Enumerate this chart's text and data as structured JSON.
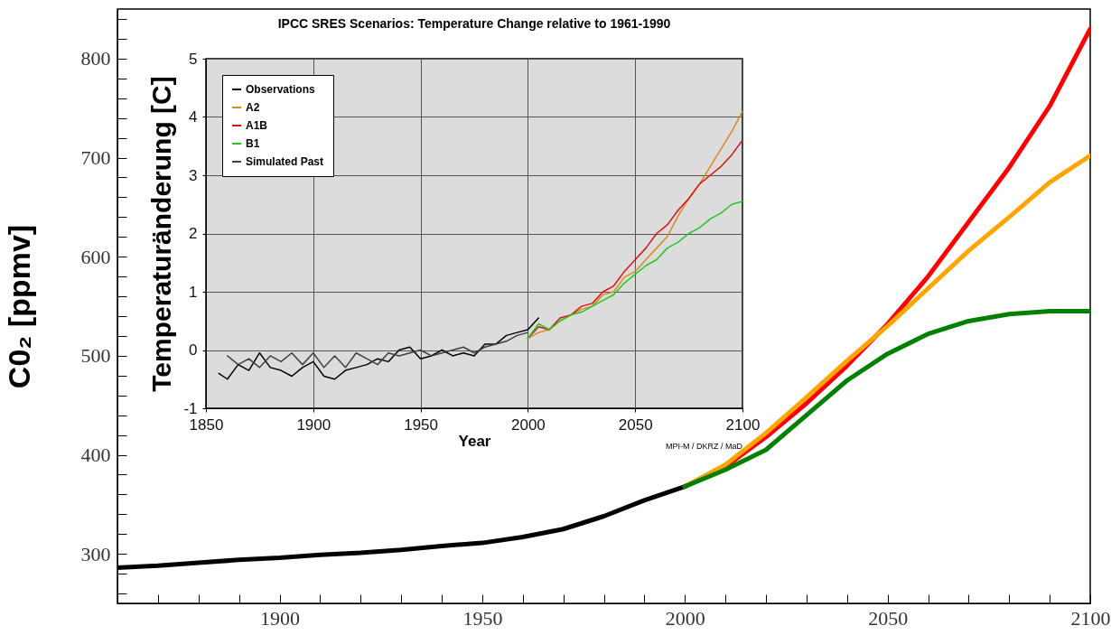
{
  "chart_data": [
    {
      "type": "line",
      "ylabel": "C0₂ [ppmv]",
      "xlim": [
        1860,
        2100
      ],
      "ylim": [
        250,
        850
      ],
      "xticks": [
        {
          "value": 1870,
          "label": null
        },
        {
          "value": 1880,
          "label": null
        },
        {
          "value": 1890,
          "label": null
        },
        1900,
        {
          "value": 1910,
          "label": null
        },
        {
          "value": 1920,
          "label": null
        },
        {
          "value": 1930,
          "label": null
        },
        {
          "value": 1940,
          "label": null
        },
        1950,
        {
          "value": 1960,
          "label": null
        },
        {
          "value": 1970,
          "label": null
        },
        {
          "value": 1980,
          "label": null
        },
        {
          "value": 1990,
          "label": null
        },
        2000,
        {
          "value": 2010,
          "label": null
        },
        {
          "value": 2020,
          "label": null
        },
        {
          "value": 2030,
          "label": null
        },
        {
          "value": 2040,
          "label": null
        },
        2050,
        {
          "value": 2060,
          "label": null
        },
        {
          "value": 2070,
          "label": null
        },
        {
          "value": 2080,
          "label": null
        },
        {
          "value": 2090,
          "label": null
        },
        2100
      ],
      "yticks": [
        {
          "value": 260,
          "label": null
        },
        {
          "value": 280,
          "label": null
        },
        300,
        {
          "value": 320,
          "label": null
        },
        {
          "value": 340,
          "label": null
        },
        {
          "value": 360,
          "label": null
        },
        {
          "value": 380,
          "label": null
        },
        400,
        {
          "value": 420,
          "label": null
        },
        {
          "value": 440,
          "label": null
        },
        {
          "value": 460,
          "label": null
        },
        {
          "value": 480,
          "label": null
        },
        500,
        {
          "value": 520,
          "label": null
        },
        {
          "value": 540,
          "label": null
        },
        {
          "value": 560,
          "label": null
        },
        {
          "value": 580,
          "label": null
        },
        600,
        {
          "value": 620,
          "label": null
        },
        {
          "value": 640,
          "label": null
        },
        {
          "value": 660,
          "label": null
        },
        {
          "value": 680,
          "label": null
        },
        700,
        {
          "value": 720,
          "label": null
        },
        {
          "value": 740,
          "label": null
        },
        {
          "value": 760,
          "label": null
        },
        {
          "value": 780,
          "label": null
        },
        800,
        {
          "value": 820,
          "label": null
        },
        {
          "value": 840,
          "label": null
        }
      ],
      "series": [
        {
          "color": "#000000",
          "x": [
            1860,
            1870,
            1880,
            1890,
            1900,
            1910,
            1920,
            1930,
            1940,
            1950,
            1960,
            1970,
            1980,
            1990,
            2000
          ],
          "values": [
            286,
            288,
            291,
            294,
            296,
            299,
            301,
            304,
            308,
            311,
            317,
            325,
            338,
            354,
            368
          ]
        },
        {
          "color": "#ff0000",
          "x": [
            2000,
            2010,
            2020,
            2030,
            2040,
            2050,
            2060,
            2070,
            2080,
            2090,
            2100
          ],
          "values": [
            368,
            388,
            418,
            452,
            490,
            532,
            580,
            635,
            690,
            752,
            830
          ]
        },
        {
          "color": "#ffa500",
          "x": [
            2000,
            2010,
            2020,
            2030,
            2040,
            2050,
            2060,
            2070,
            2080,
            2090,
            2100
          ],
          "values": [
            368,
            390,
            422,
            458,
            495,
            530,
            568,
            606,
            640,
            675,
            702
          ]
        },
        {
          "color": "#008000",
          "x": [
            2000,
            2010,
            2020,
            2030,
            2040,
            2050,
            2060,
            2070,
            2080,
            2090,
            2100
          ],
          "values": [
            368,
            385,
            405,
            440,
            475,
            502,
            522,
            535,
            542,
            545,
            545
          ]
        }
      ]
    },
    {
      "type": "line",
      "title": "IPCC SRES Scenarios: Temperature Change relative to 1961-1990",
      "xlabel": "Year",
      "ylabel": "Temperaturänderung [C]",
      "xlim": [
        1850,
        2100
      ],
      "ylim": [
        -1,
        5
      ],
      "xticks": [
        1850,
        1900,
        1950,
        2000,
        2050,
        2100
      ],
      "yticks": [
        -1,
        0,
        1,
        2,
        3,
        4,
        5
      ],
      "grid": true,
      "legend": "top left",
      "annotations": [
        "MPI-M / DKRZ / MaD"
      ],
      "series": [
        {
          "name": "Observations",
          "color": "#000000",
          "x": [
            1856,
            1860,
            1865,
            1870,
            1875,
            1880,
            1885,
            1890,
            1895,
            1900,
            1905,
            1910,
            1915,
            1920,
            1925,
            1930,
            1935,
            1940,
            1945,
            1950,
            1955,
            1960,
            1965,
            1970,
            1975,
            1980,
            1985,
            1990,
            1995,
            2000,
            2005
          ],
          "values": [
            -0.4,
            -0.5,
            -0.25,
            -0.35,
            -0.05,
            -0.3,
            -0.35,
            -0.45,
            -0.3,
            -0.2,
            -0.45,
            -0.5,
            -0.35,
            -0.3,
            -0.25,
            -0.15,
            -0.2,
            0.0,
            0.05,
            -0.15,
            -0.1,
            0.0,
            -0.1,
            -0.05,
            -0.1,
            0.1,
            0.1,
            0.25,
            0.3,
            0.35,
            0.55
          ]
        },
        {
          "name": "A2",
          "color": "#d98a1e",
          "x": [
            2000,
            2005,
            2010,
            2015,
            2020,
            2025,
            2030,
            2035,
            2040,
            2045,
            2050,
            2055,
            2060,
            2065,
            2070,
            2075,
            2080,
            2085,
            2090,
            2095,
            2100
          ],
          "values": [
            0.2,
            0.3,
            0.35,
            0.5,
            0.6,
            0.7,
            0.75,
            0.95,
            1.0,
            1.25,
            1.35,
            1.55,
            1.75,
            1.95,
            2.3,
            2.6,
            2.85,
            3.15,
            3.45,
            3.75,
            4.1
          ]
        },
        {
          "name": "A1B",
          "color": "#e01010",
          "x": [
            2000,
            2005,
            2010,
            2015,
            2020,
            2025,
            2030,
            2035,
            2040,
            2045,
            2050,
            2055,
            2060,
            2065,
            2070,
            2075,
            2080,
            2085,
            2090,
            2095,
            2100
          ],
          "values": [
            0.2,
            0.4,
            0.35,
            0.55,
            0.6,
            0.75,
            0.8,
            1.0,
            1.1,
            1.35,
            1.55,
            1.75,
            2.0,
            2.15,
            2.4,
            2.6,
            2.85,
            3.0,
            3.15,
            3.35,
            3.6
          ]
        },
        {
          "name": "B1",
          "color": "#22c822",
          "x": [
            2000,
            2005,
            2010,
            2015,
            2020,
            2025,
            2030,
            2035,
            2040,
            2045,
            2050,
            2055,
            2060,
            2065,
            2070,
            2075,
            2080,
            2085,
            2090,
            2095,
            2100
          ],
          "values": [
            0.2,
            0.45,
            0.35,
            0.5,
            0.6,
            0.65,
            0.75,
            0.85,
            0.95,
            1.15,
            1.3,
            1.45,
            1.55,
            1.75,
            1.85,
            2.0,
            2.1,
            2.25,
            2.35,
            2.5,
            2.55
          ]
        },
        {
          "name": "Simulated Past",
          "color": "#404040",
          "x": [
            1860,
            1865,
            1870,
            1875,
            1880,
            1885,
            1890,
            1895,
            1900,
            1905,
            1910,
            1915,
            1920,
            1925,
            1930,
            1935,
            1940,
            1945,
            1950,
            1955,
            1960,
            1965,
            1970,
            1975,
            1980,
            1985,
            1990,
            1995,
            2000
          ],
          "values": [
            -0.1,
            -0.25,
            -0.15,
            -0.3,
            -0.1,
            -0.2,
            -0.05,
            -0.25,
            -0.05,
            -0.3,
            -0.1,
            -0.3,
            -0.05,
            -0.15,
            -0.25,
            -0.05,
            -0.1,
            -0.05,
            0.0,
            -0.1,
            -0.05,
            0.0,
            0.05,
            -0.05,
            0.05,
            0.1,
            0.15,
            0.25,
            0.3
          ]
        }
      ]
    }
  ]
}
